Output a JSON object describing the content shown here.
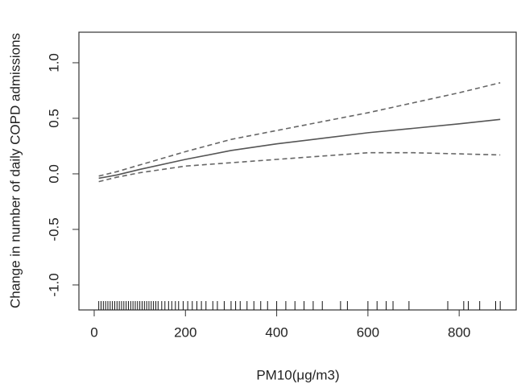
{
  "chart_data": {
    "type": "line",
    "x_label": "PM10(μg/m3)",
    "y_label": "Change in number of daily COPD admissions",
    "xlim": [
      -33.5,
      925
    ],
    "ylim": [
      -1.225,
      1.275
    ],
    "xticks": [
      0,
      200,
      400,
      600,
      800
    ],
    "yticks": [
      {
        "value": -1,
        "label": "-1.0"
      },
      {
        "value": -0.5,
        "label": "-0.5"
      },
      {
        "value": 0,
        "label": "0.0"
      },
      {
        "value": 0.5,
        "label": "0.5"
      },
      {
        "value": 1,
        "label": "1.0"
      }
    ],
    "x": [
      10,
      50,
      100,
      200,
      300,
      400,
      500,
      600,
      700,
      800,
      890
    ],
    "series": [
      {
        "color": "#555555",
        "dash": false,
        "values": [
          -0.04,
          -0.01,
          0.04,
          0.13,
          0.21,
          0.27,
          0.32,
          0.37,
          0.41,
          0.45,
          0.49
        ]
      },
      {
        "color": "#666666",
        "dash": true,
        "values": [
          -0.02,
          0.02,
          0.08,
          0.2,
          0.31,
          0.39,
          0.47,
          0.55,
          0.64,
          0.73,
          0.82
        ]
      },
      {
        "color": "#666666",
        "dash": true,
        "values": [
          -0.07,
          -0.03,
          0.01,
          0.07,
          0.1,
          0.13,
          0.16,
          0.19,
          0.19,
          0.18,
          0.17
        ]
      }
    ],
    "rug": [
      10,
      15,
      20,
      25,
      30,
      35,
      40,
      45,
      50,
      55,
      60,
      65,
      70,
      75,
      80,
      85,
      90,
      95,
      100,
      105,
      110,
      115,
      120,
      125,
      130,
      135,
      140,
      148,
      155,
      163,
      170,
      178,
      185,
      195,
      205,
      215,
      225,
      235,
      245,
      260,
      270,
      285,
      300,
      310,
      320,
      335,
      350,
      365,
      380,
      400,
      420,
      440,
      460,
      480,
      500,
      540,
      555,
      600,
      620,
      640,
      655,
      690,
      775,
      810,
      820,
      845,
      880,
      890
    ]
  }
}
